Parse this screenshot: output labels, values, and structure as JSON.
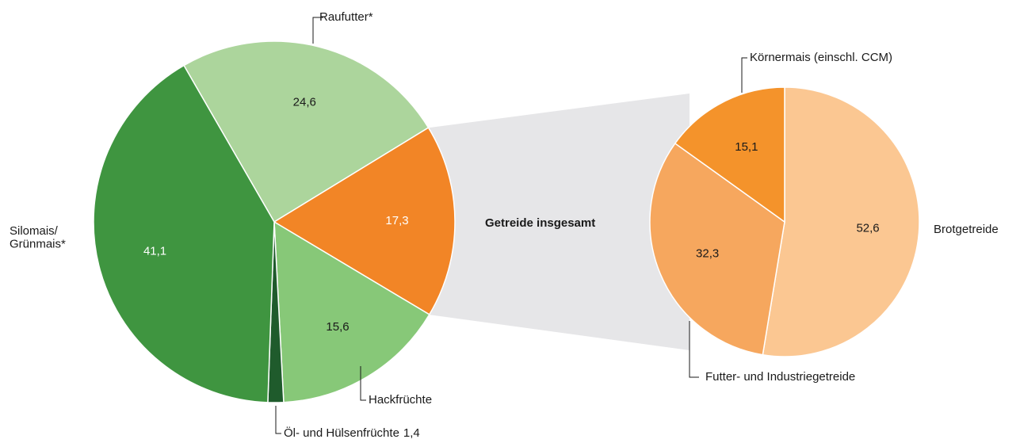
{
  "chart_data": [
    {
      "type": "pie",
      "categories": [
        "Raufutter*",
        "Getreide insgesamt",
        "Hackfrüchte",
        "Öl- und Hülsenfrüchte",
        "Silomais/\nGrünmais*"
      ],
      "values": [
        24.6,
        17.3,
        15.6,
        1.4,
        41.1
      ],
      "value_labels": [
        "24,6",
        "17,3",
        "15,6",
        "1,4",
        "41,1"
      ],
      "colors": [
        "#acd59c",
        "#f28526",
        "#87c878",
        "#1f5b2c",
        "#3f9540"
      ]
    },
    {
      "type": "pie",
      "categories": [
        "Brotgetreide",
        "Futter- und Industriegetreide",
        "Körnermais (einschl. CCM)"
      ],
      "values": [
        52.6,
        32.3,
        15.1
      ],
      "value_labels": [
        "52,6",
        "32,3",
        "15,1"
      ],
      "colors": [
        "#fbc792",
        "#f6a75e",
        "#f4932b"
      ]
    }
  ]
}
